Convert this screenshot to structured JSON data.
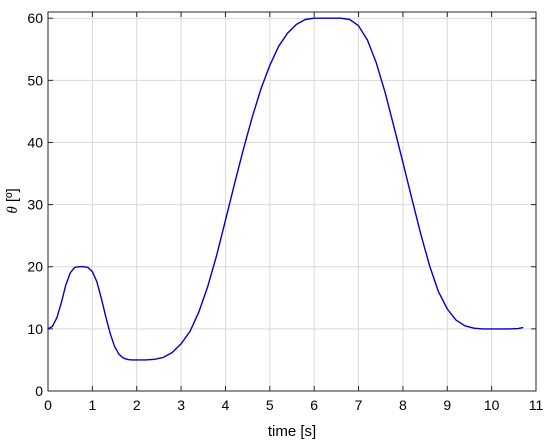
{
  "chart_data": {
    "type": "line",
    "title": "",
    "xlabel": "time [s]",
    "ylabel_symbol": "θ",
    "ylabel_unit": " [º]",
    "xlim": [
      0,
      11
    ],
    "ylim": [
      0,
      61
    ],
    "xticks": [
      0,
      1,
      2,
      3,
      4,
      5,
      6,
      7,
      8,
      9,
      10,
      11
    ],
    "yticks": [
      0,
      10,
      20,
      30,
      40,
      50,
      60
    ],
    "grid": true,
    "series": [
      {
        "color": "#0000cc",
        "x": [
          0,
          0.1,
          0.2,
          0.3,
          0.4,
          0.5,
          0.6,
          0.7,
          0.8,
          0.9,
          1.0,
          1.1,
          1.2,
          1.3,
          1.4,
          1.5,
          1.6,
          1.7,
          1.8,
          1.9,
          2.0,
          2.2,
          2.4,
          2.6,
          2.8,
          3.0,
          3.2,
          3.4,
          3.6,
          3.8,
          4.0,
          4.2,
          4.4,
          4.6,
          4.8,
          5.0,
          5.2,
          5.4,
          5.6,
          5.8,
          6.0,
          6.2,
          6.4,
          6.6,
          6.8,
          7.0,
          7.2,
          7.4,
          7.6,
          7.8,
          8.0,
          8.2,
          8.4,
          8.6,
          8.8,
          9.0,
          9.2,
          9.4,
          9.6,
          9.8,
          10.0,
          10.2,
          10.4,
          10.6,
          10.7
        ],
        "y": [
          10,
          10.4,
          11.8,
          14.2,
          17.0,
          19.0,
          19.9,
          20.0,
          20.0,
          19.9,
          19.2,
          17.6,
          15.0,
          12.0,
          9.3,
          7.2,
          5.9,
          5.3,
          5.05,
          5.0,
          5.0,
          5.0,
          5.1,
          5.4,
          6.2,
          7.6,
          9.6,
          12.7,
          16.8,
          21.8,
          27.5,
          33.2,
          38.8,
          44.0,
          48.6,
          52.4,
          55.5,
          57.6,
          59.0,
          59.8,
          60.0,
          60.0,
          60.0,
          60.0,
          59.8,
          58.8,
          56.5,
          52.8,
          48.0,
          42.5,
          36.8,
          31.0,
          25.3,
          20.2,
          16.0,
          13.2,
          11.4,
          10.5,
          10.1,
          10.0,
          10.0,
          10.0,
          10.0,
          10.05,
          10.2
        ]
      }
    ]
  }
}
